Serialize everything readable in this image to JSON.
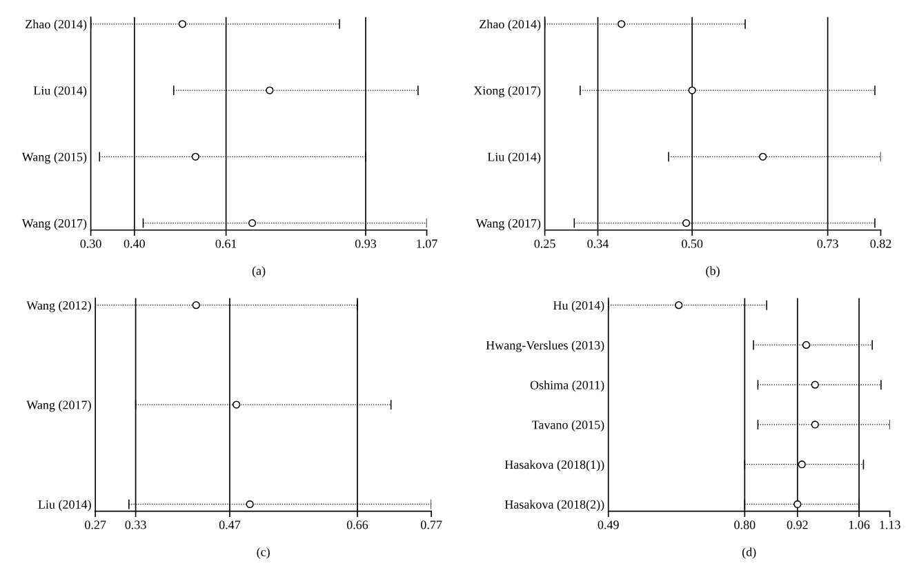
{
  "chart_data": [
    {
      "type": "scatter",
      "orientation": "horizontal",
      "marker": "circle",
      "grid": false,
      "color": "#000000",
      "categories": [
        "Zhao (2014)",
        "Liu (2014)",
        "Wang (2015)",
        "Wang (2017)"
      ],
      "values": [
        0.51,
        0.71,
        0.54,
        0.67
      ],
      "errors": [
        [
          0.3,
          0.87
        ],
        [
          0.49,
          1.05
        ],
        [
          0.32,
          0.93
        ],
        [
          0.42,
          1.07
        ]
      ],
      "xlim": [
        0.3,
        1.07
      ],
      "xticks": [
        {
          "value": 0.3,
          "label": "0.30"
        },
        {
          "value": 0.4,
          "label": "0.40"
        },
        {
          "value": 0.61,
          "label": "0.61"
        },
        {
          "value": 0.93,
          "label": "0.93"
        },
        {
          "value": 1.07,
          "label": "1.07"
        }
      ],
      "ref_lines": [
        {
          "axis": "x",
          "value": 0.4
        },
        {
          "axis": "x",
          "value": 0.61
        },
        {
          "axis": "x",
          "value": 0.93
        }
      ],
      "annotations": [
        "(a)"
      ]
    },
    {
      "type": "scatter",
      "orientation": "horizontal",
      "marker": "circle",
      "grid": false,
      "color": "#000000",
      "categories": [
        "Zhao (2014)",
        "Xiong (2017)",
        "Liu (2014)",
        "Wang (2017)"
      ],
      "values": [
        0.38,
        0.5,
        0.62,
        0.49
      ],
      "errors": [
        [
          0.25,
          0.59
        ],
        [
          0.31,
          0.81
        ],
        [
          0.46,
          0.82
        ],
        [
          0.3,
          0.81
        ]
      ],
      "xlim": [
        0.25,
        0.82
      ],
      "xticks": [
        {
          "value": 0.25,
          "label": "0.25"
        },
        {
          "value": 0.34,
          "label": "0.34"
        },
        {
          "value": 0.5,
          "label": "0.50"
        },
        {
          "value": 0.73,
          "label": "0.73"
        },
        {
          "value": 0.82,
          "label": "0.82"
        }
      ],
      "ref_lines": [
        {
          "axis": "x",
          "value": 0.34
        },
        {
          "axis": "x",
          "value": 0.5
        },
        {
          "axis": "x",
          "value": 0.73
        }
      ],
      "annotations": [
        "(b)"
      ]
    },
    {
      "type": "scatter",
      "orientation": "horizontal",
      "marker": "circle",
      "grid": false,
      "color": "#000000",
      "categories": [
        "Wang (2012)",
        "Wang (2017)",
        "Liu (2014)"
      ],
      "values": [
        0.42,
        0.48,
        0.5
      ],
      "errors": [
        [
          0.27,
          0.66
        ],
        [
          0.33,
          0.71
        ],
        [
          0.32,
          0.77
        ]
      ],
      "xlim": [
        0.27,
        0.77
      ],
      "xticks": [
        {
          "value": 0.27,
          "label": "0.27"
        },
        {
          "value": 0.33,
          "label": "0.33"
        },
        {
          "value": 0.47,
          "label": "0.47"
        },
        {
          "value": 0.66,
          "label": "0.66"
        },
        {
          "value": 0.77,
          "label": "0.77"
        }
      ],
      "ref_lines": [
        {
          "axis": "x",
          "value": 0.33
        },
        {
          "axis": "x",
          "value": 0.47
        },
        {
          "axis": "x",
          "value": 0.66
        }
      ],
      "annotations": [
        "(c)"
      ]
    },
    {
      "type": "scatter",
      "orientation": "horizontal",
      "marker": "circle",
      "grid": false,
      "color": "#000000",
      "categories": [
        "Hu (2014)",
        "Hwang-Verslues (2013)",
        "Oshima (2011)",
        "Tavano (2015)",
        "Hasakova (2018(1))",
        "Hasakova (2018(2))"
      ],
      "values": [
        0.65,
        0.94,
        0.96,
        0.96,
        0.93,
        0.92
      ],
      "errors": [
        [
          0.49,
          0.85
        ],
        [
          0.82,
          1.09
        ],
        [
          0.83,
          1.11
        ],
        [
          0.83,
          1.13
        ],
        [
          0.8,
          1.07
        ],
        [
          0.8,
          1.06
        ]
      ],
      "xlim": [
        0.49,
        1.13
      ],
      "xticks": [
        {
          "value": 0.49,
          "label": "0.49"
        },
        {
          "value": 0.8,
          "label": "0.80"
        },
        {
          "value": 0.92,
          "label": "0.92"
        },
        {
          "value": 1.06,
          "label": "1.06"
        },
        {
          "value": 1.13,
          "label": "1.13"
        }
      ],
      "ref_lines": [
        {
          "axis": "x",
          "value": 0.8
        },
        {
          "axis": "x",
          "value": 0.92
        },
        {
          "axis": "x",
          "value": 1.06
        }
      ],
      "annotations": [
        "(d)"
      ]
    }
  ]
}
